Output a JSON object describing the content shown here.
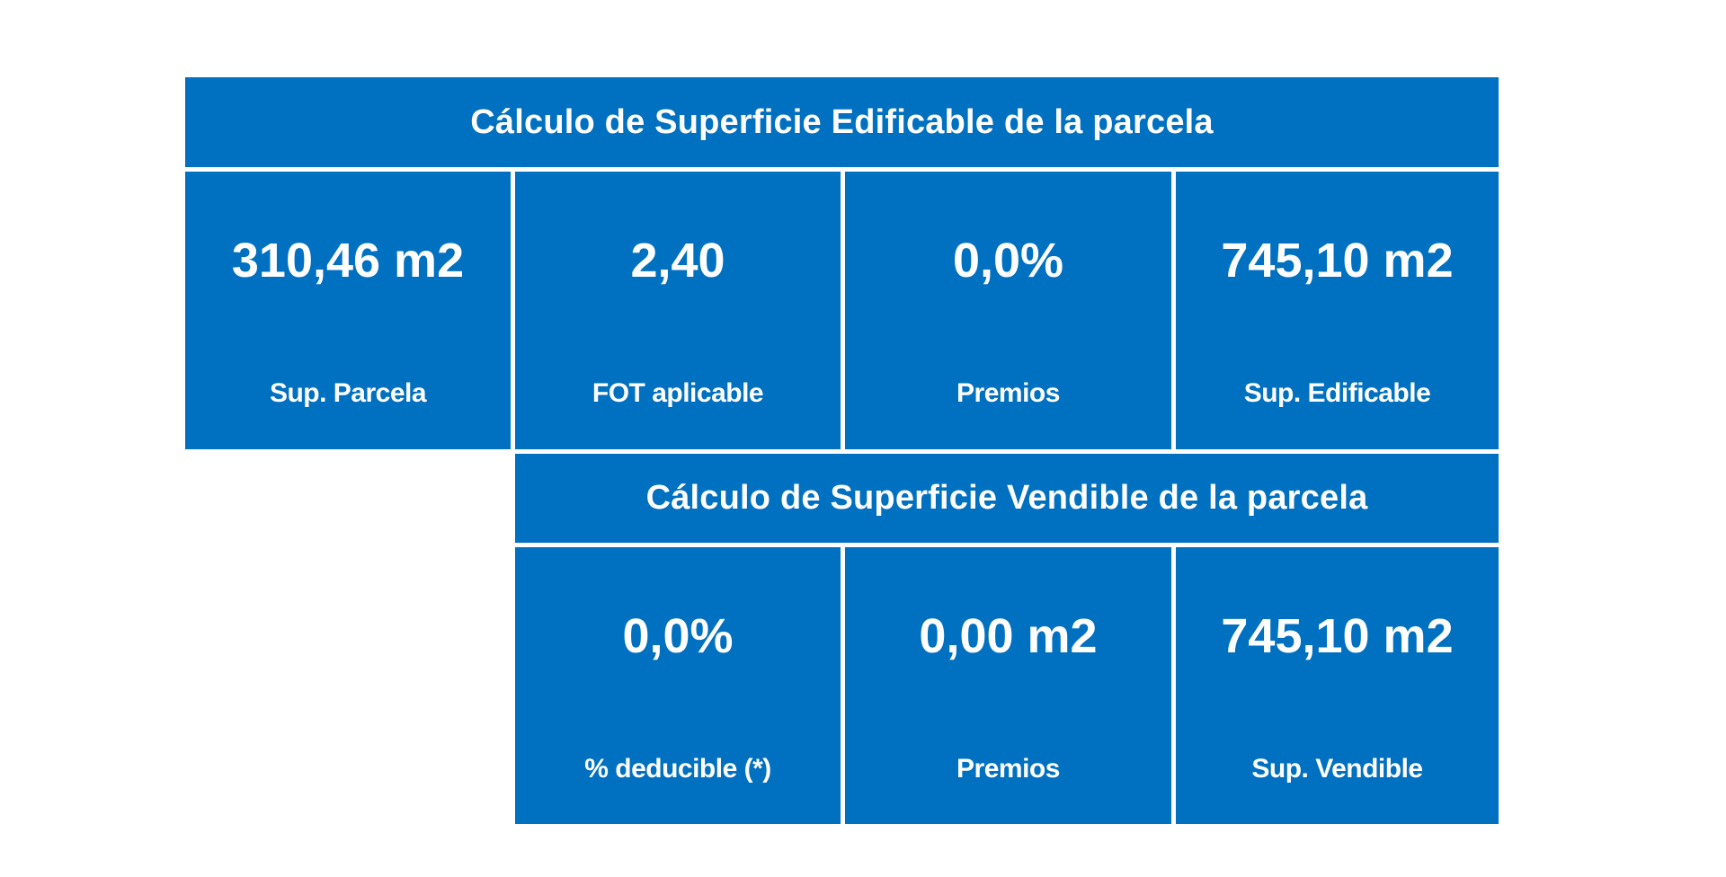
{
  "edificable": {
    "title": "Cálculo de Superficie Edificable de la parcela",
    "cells": [
      {
        "value": "310,46 m2",
        "label": "Sup. Parcela"
      },
      {
        "value": "2,40",
        "label": "FOT aplicable"
      },
      {
        "value": "0,0%",
        "label": "Premios"
      },
      {
        "value": "745,10 m2",
        "label": "Sup. Edificable"
      }
    ]
  },
  "vendible": {
    "title": "Cálculo de Superficie Vendible de la parcela",
    "cells": [
      {
        "value": "0,0%",
        "label": "% deducible (*)"
      },
      {
        "value": "0,00 m2",
        "label": "Premios"
      },
      {
        "value": "745,10 m2",
        "label": "Sup. Vendible"
      }
    ]
  },
  "colors": {
    "panel_background": "#0070C0",
    "text": "#FFFFFF",
    "page_background": "#FFFFFF"
  }
}
